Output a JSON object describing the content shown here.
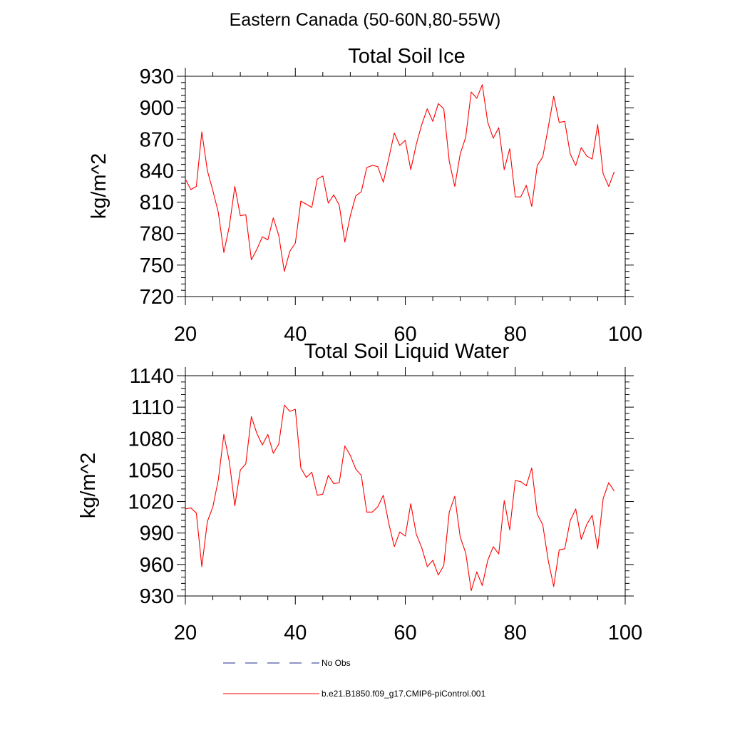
{
  "figure": {
    "suptitle": "Eastern Canada (50-60N,80-55W)"
  },
  "legend": {
    "items": [
      {
        "label": "No Obs",
        "color": "#1f2a8a",
        "style": "dashed"
      },
      {
        "label": "b.e21.B1850.f09_g17.CMIP6-piControl.001",
        "color": "#ff0000",
        "style": "solid"
      }
    ]
  },
  "chart_data": [
    {
      "type": "line",
      "title": "Total Soil Ice",
      "xlabel": "",
      "ylabel": "kg/m^2",
      "xlim": [
        20,
        100
      ],
      "ylim": [
        720,
        930
      ],
      "xticks": [
        20,
        40,
        60,
        80,
        100
      ],
      "yticks": [
        720,
        750,
        780,
        810,
        840,
        870,
        900,
        930
      ],
      "grid": false,
      "series": [
        {
          "name": "b.e21.B1850.f09_g17.CMIP6-piControl.001",
          "color": "#ff0000",
          "x": [
            20,
            21,
            22,
            23,
            24,
            25,
            26,
            27,
            28,
            29,
            30,
            31,
            32,
            33,
            34,
            35,
            36,
            37,
            38,
            39,
            40,
            41,
            42,
            43,
            44,
            45,
            46,
            47,
            48,
            49,
            50,
            51,
            52,
            53,
            54,
            55,
            56,
            57,
            58,
            59,
            60,
            61,
            62,
            63,
            64,
            65,
            66,
            67,
            68,
            69,
            70,
            71,
            72,
            73,
            74,
            75,
            76,
            77,
            78,
            79,
            80,
            81,
            82,
            83,
            84,
            85,
            86,
            87,
            88,
            89,
            90,
            91,
            92,
            93,
            94,
            95,
            96,
            97,
            98
          ],
          "y": [
            832,
            822,
            825,
            877,
            840,
            821,
            800,
            762,
            787,
            825,
            797,
            798,
            755,
            765,
            777,
            774,
            795,
            778,
            744,
            763,
            771,
            811,
            808,
            805,
            832,
            835,
            809,
            817,
            807,
            772,
            797,
            816,
            820,
            843,
            845,
            844,
            829,
            852,
            876,
            864,
            869,
            841,
            865,
            884,
            899,
            887,
            904,
            899,
            849,
            825,
            856,
            872,
            915,
            909,
            922,
            886,
            871,
            881,
            841,
            861,
            815,
            815,
            826,
            806,
            845,
            853,
            881,
            911,
            886,
            887,
            856,
            845,
            862,
            854,
            851,
            884,
            837,
            825,
            839
          ]
        }
      ]
    },
    {
      "type": "line",
      "title": "Total Soil Liquid Water",
      "xlabel": "",
      "ylabel": "kg/m^2",
      "xlim": [
        20,
        100
      ],
      "ylim": [
        930,
        1140
      ],
      "xticks": [
        20,
        40,
        60,
        80,
        100
      ],
      "yticks": [
        930,
        960,
        990,
        1020,
        1050,
        1080,
        1110,
        1140
      ],
      "grid": false,
      "series": [
        {
          "name": "b.e21.B1850.f09_g17.CMIP6-piControl.001",
          "color": "#ff0000",
          "x": [
            20,
            21,
            22,
            23,
            24,
            25,
            26,
            27,
            28,
            29,
            30,
            31,
            32,
            33,
            34,
            35,
            36,
            37,
            38,
            39,
            40,
            41,
            42,
            43,
            44,
            45,
            46,
            47,
            48,
            49,
            50,
            51,
            52,
            53,
            54,
            55,
            56,
            57,
            58,
            59,
            60,
            61,
            62,
            63,
            64,
            65,
            66,
            67,
            68,
            69,
            70,
            71,
            72,
            73,
            74,
            75,
            76,
            77,
            78,
            79,
            80,
            81,
            82,
            83,
            84,
            85,
            86,
            87,
            88,
            89,
            90,
            91,
            92,
            93,
            94,
            95,
            96,
            97,
            98
          ],
          "y": [
            1013,
            1014,
            1009,
            958,
            1001,
            1015,
            1041,
            1084,
            1058,
            1016,
            1050,
            1056,
            1101,
            1085,
            1074,
            1084,
            1066,
            1075,
            1112,
            1106,
            1108,
            1052,
            1043,
            1048,
            1026,
            1027,
            1045,
            1037,
            1038,
            1073,
            1064,
            1051,
            1045,
            1010,
            1010,
            1015,
            1026,
            999,
            977,
            991,
            987,
            1018,
            989,
            976,
            958,
            964,
            950,
            959,
            1010,
            1025,
            986,
            971,
            935,
            953,
            940,
            964,
            977,
            970,
            1021,
            993,
            1040,
            1039,
            1035,
            1052,
            1008,
            998,
            964,
            939,
            974,
            975,
            1002,
            1013,
            984,
            998,
            1007,
            975,
            1023,
            1038,
            1030
          ]
        }
      ]
    }
  ]
}
